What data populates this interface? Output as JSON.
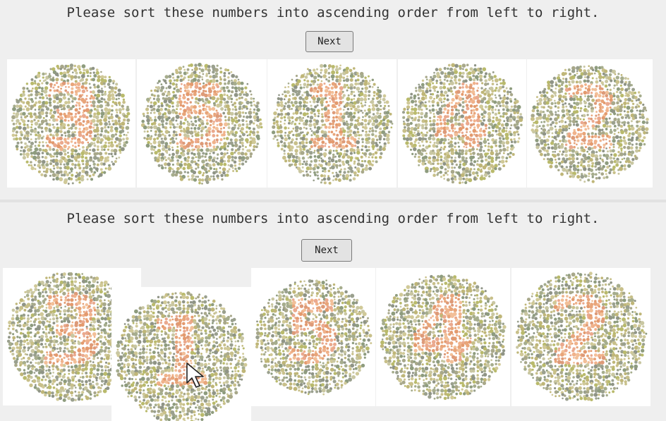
{
  "top_panel": {
    "instruction": "Please sort these numbers into ascending order from left to right.",
    "next_label": "Next",
    "plates": [
      {
        "digit": "3"
      },
      {
        "digit": "5"
      },
      {
        "digit": "1"
      },
      {
        "digit": "4"
      },
      {
        "digit": "2"
      }
    ]
  },
  "bottom_panel": {
    "instruction": "Please sort these numbers into ascending order from left to right.",
    "next_label": "Next",
    "plates": [
      {
        "digit": "3"
      },
      {
        "digit": "1"
      },
      {
        "digit": "5"
      },
      {
        "digit": "4"
      },
      {
        "digit": "2"
      }
    ]
  },
  "cursor": {
    "icon": "arrow-cursor-icon"
  },
  "colors": {
    "background": "#efefef",
    "plate_background_dots": [
      "#8e9c7e",
      "#a8a88a",
      "#b9ba6c",
      "#c8c08a",
      "#9aa08e",
      "#c9c7a2",
      "#a6ad8d",
      "#bfb678",
      "#8f9486",
      "#d0c998"
    ],
    "plate_figure_dots": [
      "#e8a57a",
      "#f0b28b",
      "#e39a6e",
      "#f2bf98",
      "#dd9a78",
      "#eaa98e"
    ]
  }
}
